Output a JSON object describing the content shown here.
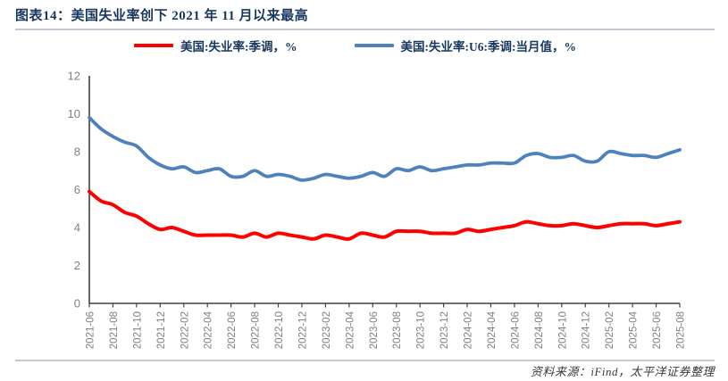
{
  "header": {
    "title": "图表14：美国失业率创下 2021 年 11 月以来最高"
  },
  "chart_data": {
    "type": "line",
    "title": "",
    "xlabel": "",
    "ylabel": "",
    "ylim": [
      0,
      12
    ],
    "ytick_step": 2,
    "xtick_every": 2,
    "grid": false,
    "legend_position": "top",
    "axis_color": "#404040",
    "tick_label_color": "#808080",
    "x": [
      "2021-06",
      "2021-07",
      "2021-08",
      "2021-09",
      "2021-10",
      "2021-11",
      "2021-12",
      "2022-01",
      "2022-02",
      "2022-03",
      "2022-04",
      "2022-05",
      "2022-06",
      "2022-07",
      "2022-08",
      "2022-09",
      "2022-10",
      "2022-11",
      "2022-12",
      "2023-01",
      "2023-02",
      "2023-03",
      "2023-04",
      "2023-05",
      "2023-06",
      "2023-07",
      "2023-08",
      "2023-09",
      "2023-10",
      "2023-11",
      "2023-12",
      "2024-01",
      "2024-02",
      "2024-03",
      "2024-04",
      "2024-05",
      "2024-06",
      "2024-07",
      "2024-08",
      "2024-09",
      "2024-10",
      "2024-11",
      "2024-12",
      "2025-01",
      "2025-02",
      "2025-03",
      "2025-04",
      "2025-05",
      "2025-06",
      "2025-07",
      "2025-08"
    ],
    "series": [
      {
        "name": "美国:失业率:季调，%",
        "color": "#FF0000",
        "stroke_width": 4,
        "values": [
          5.9,
          5.4,
          5.2,
          4.8,
          4.6,
          4.2,
          3.9,
          4.0,
          3.8,
          3.6,
          3.6,
          3.6,
          3.6,
          3.5,
          3.7,
          3.5,
          3.7,
          3.6,
          3.5,
          3.4,
          3.6,
          3.5,
          3.4,
          3.7,
          3.6,
          3.5,
          3.8,
          3.8,
          3.8,
          3.7,
          3.7,
          3.7,
          3.9,
          3.8,
          3.9,
          4.0,
          4.1,
          4.3,
          4.2,
          4.1,
          4.1,
          4.2,
          4.1,
          4.0,
          4.1,
          4.2,
          4.2,
          4.2,
          4.1,
          4.2,
          4.3
        ]
      },
      {
        "name": "美国:失业率:U6:季调:当月值，%",
        "color": "#4F81BD",
        "stroke_width": 3.8,
        "values": [
          9.8,
          9.2,
          8.8,
          8.5,
          8.3,
          7.7,
          7.3,
          7.1,
          7.2,
          6.9,
          7.0,
          7.1,
          6.7,
          6.7,
          7.0,
          6.7,
          6.8,
          6.7,
          6.5,
          6.6,
          6.8,
          6.7,
          6.6,
          6.7,
          6.9,
          6.7,
          7.1,
          7.0,
          7.2,
          7.0,
          7.1,
          7.2,
          7.3,
          7.3,
          7.4,
          7.4,
          7.4,
          7.8,
          7.9,
          7.7,
          7.7,
          7.8,
          7.5,
          7.5,
          8.0,
          7.9,
          7.8,
          7.8,
          7.7,
          7.9,
          8.1
        ]
      }
    ]
  },
  "footer": {
    "source": "资料来源：iFind，太平洋证券整理"
  }
}
